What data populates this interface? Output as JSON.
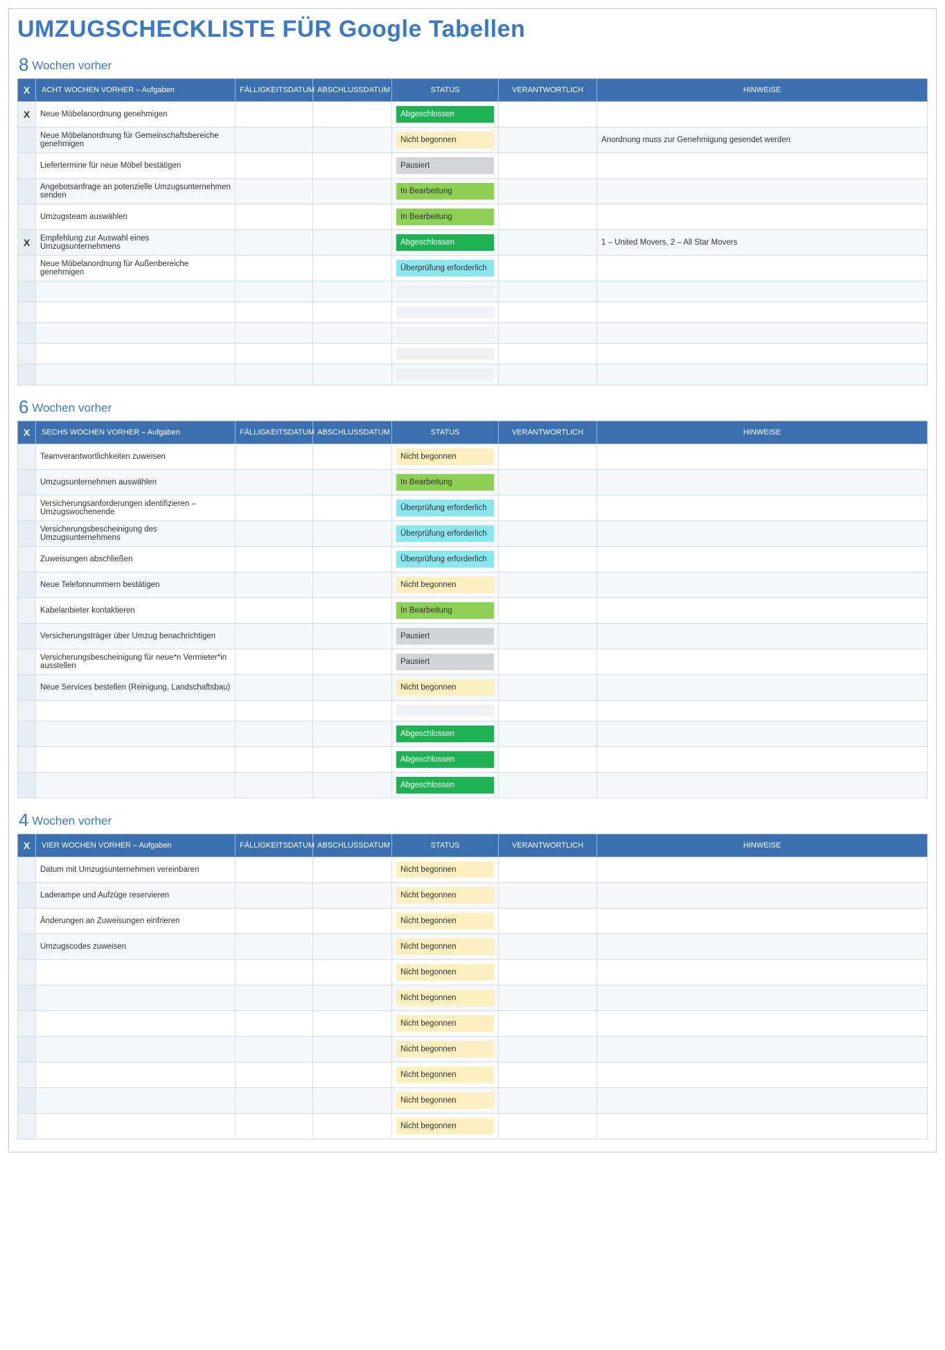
{
  "title": "UMZUGSCHECKLISTE FÜR Google Tabellen",
  "columns": {
    "check": "X",
    "due": "FÄLLIGKEITSDATUM",
    "completed": "ABSCHLUSSDATUM",
    "status": "STATUS",
    "responsible": "VERANTWORTLICH",
    "notes": "HINWEISE"
  },
  "status_styles": {
    "Abgeschlossen": {
      "bg": "#1fb254",
      "fg": "#ffffff"
    },
    "Nicht begonnen": {
      "bg": "#fcefc0",
      "fg": "#333333"
    },
    "Pausiert": {
      "bg": "#d2d4d7",
      "fg": "#333333"
    },
    "In Bearbeitung": {
      "bg": "#8ed054",
      "fg": "#333333"
    },
    "Überprüfung erforderlich": {
      "bg": "#8ae7f0",
      "fg": "#333333"
    },
    "__empty": {
      "bg": "#f0f1f3",
      "fg": "#333333"
    }
  },
  "sections": [
    {
      "num": "8",
      "label": "Wochen vorher",
      "task_header": "ACHT WOCHEN VORHER – Aufgaben",
      "rows": [
        {
          "check": "X",
          "task": "Neue Möbelanordnung genehmigen",
          "status": "Abgeschlossen"
        },
        {
          "task": "Neue Möbelanordnung für Gemeinschaftsbereiche genehmigen",
          "status": "Nicht begonnen",
          "notes": "Anordnung muss zur Genehmigung gesendet werden"
        },
        {
          "task": "Liefertermine für neue Möbel bestätigen",
          "status": "Pausiert"
        },
        {
          "task": "Angebotsanfrage an potenzielle Umzugsunternehmen senden",
          "status": "In Bearbeitung"
        },
        {
          "task": "Umzugsteam auswählen",
          "status": "In Bearbeitung"
        },
        {
          "check": "X",
          "task": "Empfehlung zur Auswahl eines Umzugsunternehmens",
          "status": "Abgeschlossen",
          "notes": "1 – United Movers, 2 – All Star Movers"
        },
        {
          "task": "Neue Möbelanordnung für Außenbereiche genehmigen",
          "status": "Überprüfung erforderlich"
        },
        {
          "task": "",
          "status": ""
        },
        {
          "task": "",
          "status": ""
        },
        {
          "task": "",
          "status": ""
        },
        {
          "task": "",
          "status": ""
        },
        {
          "task": "",
          "status": ""
        }
      ]
    },
    {
      "num": "6",
      "label": "Wochen vorher",
      "task_header": "SECHS WOCHEN VORHER – Aufgaben",
      "rows": [
        {
          "task": "Teamverantwortlichkeiten zuweisen",
          "status": "Nicht begonnen"
        },
        {
          "task": "Umzugsunternehmen auswählen",
          "status": "In Bearbeitung"
        },
        {
          "task": "Versicherungsanforderungen identifizieren – Umzugswochenende",
          "status": "Überprüfung erforderlich"
        },
        {
          "task": "Versicherungsbescheinigung des Umzugsunternehmens",
          "status": "Überprüfung erforderlich"
        },
        {
          "task": "Zuweisungen abschließen",
          "status": "Überprüfung erforderlich"
        },
        {
          "task": "Neue Telefonnummern bestätigen",
          "status": "Nicht begonnen"
        },
        {
          "task": "Kabelanbieter kontaktieren",
          "status": "In Bearbeitung"
        },
        {
          "task": "Versicherungsträger über Umzug benachrichtigen",
          "status": "Pausiert"
        },
        {
          "task": "Versicherungsbescheinigung für neue*n Vermieter*in ausstellen",
          "status": "Pausiert"
        },
        {
          "task": "Neue Services bestellen (Reinigung, Landschaftsbau)",
          "status": "Nicht begonnen"
        },
        {
          "task": "",
          "status": ""
        },
        {
          "task": "",
          "status": "Abgeschlossen"
        },
        {
          "task": "",
          "status": "Abgeschlossen"
        },
        {
          "task": "",
          "status": "Abgeschlossen"
        }
      ]
    },
    {
      "num": "4",
      "label": "Wochen vorher",
      "task_header": "VIER WOCHEN VORHER – Aufgaben",
      "rows": [
        {
          "task": "Datum mit Umzugsunternehmen vereinbaren",
          "status": "Nicht begonnen"
        },
        {
          "task": "Laderampe und Aufzüge reservieren",
          "status": "Nicht begonnen"
        },
        {
          "task": "Änderungen an Zuweisungen einfrieren",
          "status": "Nicht begonnen"
        },
        {
          "task": "Umzugscodes zuweisen",
          "status": "Nicht begonnen"
        },
        {
          "task": "",
          "status": "Nicht begonnen"
        },
        {
          "task": "",
          "status": "Nicht begonnen"
        },
        {
          "task": "",
          "status": "Nicht begonnen"
        },
        {
          "task": "",
          "status": "Nicht begonnen"
        },
        {
          "task": "",
          "status": "Nicht begonnen"
        },
        {
          "task": "",
          "status": "Nicht begonnen"
        },
        {
          "task": "",
          "status": "Nicht begonnen"
        }
      ]
    }
  ]
}
